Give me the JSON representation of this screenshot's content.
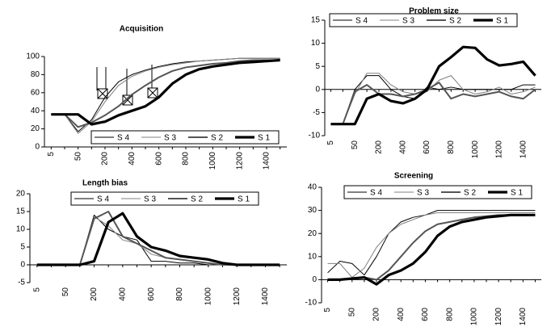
{
  "chart_data": [
    {
      "type": "line",
      "title": "Acquisition",
      "legend": "lower right",
      "categories": [
        "5",
        null,
        "50",
        null,
        "200",
        null,
        "400",
        null,
        "600",
        null,
        "800",
        null,
        "1000",
        null,
        "1200",
        null,
        "1400",
        null
      ],
      "ylim": [
        0,
        100
      ],
      "yticks": [
        0,
        20,
        40,
        60,
        80,
        100
      ],
      "series": [
        {
          "name": "S 4",
          "color": "#000000",
          "values": [
            36,
            36,
            17,
            30,
            55,
            72,
            80,
            85,
            89,
            92,
            94,
            95,
            96,
            97,
            98,
            98,
            98,
            98
          ]
        },
        {
          "name": "S 3",
          "color": "#808080",
          "values": [
            36,
            36,
            15,
            28,
            50,
            68,
            78,
            84,
            88,
            91,
            93,
            95,
            96,
            97,
            98,
            98,
            98,
            98
          ]
        },
        {
          "name": "S 2",
          "color": "#555555",
          "values": [
            36,
            36,
            22,
            27,
            35,
            45,
            58,
            68,
            77,
            84,
            88,
            90,
            92,
            93,
            95,
            96,
            96,
            96
          ]
        },
        {
          "name": "S 1",
          "color": "#000000",
          "values": [
            36,
            36,
            36,
            25,
            28,
            35,
            40,
            45,
            55,
            70,
            80,
            86,
            89,
            91,
            93,
            94,
            95,
            96
          ]
        }
      ]
    },
    {
      "type": "line",
      "title": "Problem size",
      "legend": "top",
      "categories": [
        "5",
        null,
        "50",
        null,
        "200",
        null,
        "400",
        null,
        "600",
        null,
        "800",
        null,
        "1000",
        null,
        "1200",
        null,
        "1400",
        null
      ],
      "ylim": [
        -10,
        15
      ],
      "yticks": [
        -10,
        -5,
        0,
        5,
        10,
        15
      ],
      "series": [
        {
          "name": "S 4",
          "color": "#000000",
          "values": [
            -7.5,
            -7.5,
            0,
            3,
            3,
            0,
            -1.5,
            -2,
            0.5,
            0,
            0.5,
            0,
            0,
            0,
            0,
            0,
            1,
            1
          ]
        },
        {
          "name": "S 3",
          "color": "#808080",
          "values": [
            -7.5,
            -7.5,
            -1,
            3.5,
            3.5,
            1,
            -0.5,
            -1,
            -0.5,
            2,
            3,
            0,
            -1,
            -0.5,
            0.5,
            -1,
            -0.5,
            0.5
          ]
        },
        {
          "name": "S 2",
          "color": "#555555",
          "values": [
            -7.5,
            -7.5,
            -0.5,
            1,
            -1,
            -1,
            -1.5,
            -1,
            0,
            1.5,
            -2,
            -1,
            -1.5,
            -1,
            -0.5,
            -1.5,
            -2,
            0
          ]
        },
        {
          "name": "S 1",
          "color": "#000000",
          "values": [
            -7.5,
            -7.5,
            -7.5,
            -2,
            -1,
            -2.5,
            -3,
            -2,
            0,
            5,
            7,
            9.2,
            9,
            6.5,
            5.2,
            5.5,
            6,
            3
          ]
        }
      ]
    },
    {
      "type": "line",
      "title": "Length bias",
      "legend": "top",
      "categories": [
        "5",
        null,
        "50",
        null,
        "200",
        null,
        "400",
        null,
        "600",
        null,
        "800",
        null,
        "1000",
        null,
        "1200",
        null,
        "1400",
        null
      ],
      "ylim": [
        -5,
        20
      ],
      "yticks": [
        -5,
        0,
        5,
        10,
        15,
        20
      ],
      "series": [
        {
          "name": "S 4",
          "color": "#000000",
          "values": [
            0,
            0,
            0,
            0,
            14,
            10,
            8,
            7,
            1,
            1,
            0.5,
            0.5,
            0,
            0,
            0,
            0,
            0,
            0
          ]
        },
        {
          "name": "S 3",
          "color": "#808080",
          "values": [
            0,
            0,
            0,
            0,
            13.5,
            11,
            7,
            6,
            3,
            2,
            1.5,
            1,
            0.5,
            0,
            0,
            0,
            0,
            0
          ]
        },
        {
          "name": "S 2",
          "color": "#555555",
          "values": [
            0,
            0,
            0,
            0,
            13,
            15,
            8,
            6,
            4,
            2,
            1.5,
            1,
            0.5,
            0,
            0,
            0,
            0,
            0
          ]
        },
        {
          "name": "S 1",
          "color": "#000000",
          "values": [
            0,
            0,
            0,
            0,
            1,
            12,
            14.5,
            8,
            5,
            4,
            2.5,
            2,
            1.5,
            0.5,
            0,
            0,
            0,
            0
          ]
        }
      ]
    },
    {
      "type": "line",
      "title": "Screening",
      "legend": "top",
      "categories": [
        "5",
        null,
        "50",
        null,
        "200",
        null,
        "400",
        null,
        "600",
        null,
        "800",
        null,
        "1000",
        null,
        "1200",
        null,
        "1400",
        null
      ],
      "ylim": [
        -10,
        40
      ],
      "yticks": [
        -10,
        0,
        10,
        20,
        30,
        40
      ],
      "series": [
        {
          "name": "S 4",
          "color": "#000000",
          "values": [
            3,
            8,
            7,
            2,
            10,
            20,
            25,
            27,
            28,
            30,
            30,
            30,
            30,
            30,
            30,
            30,
            30,
            30
          ]
        },
        {
          "name": "S 3",
          "color": "#808080",
          "values": [
            7,
            7,
            1,
            5,
            14,
            20,
            24,
            26,
            28,
            29,
            29,
            29,
            29,
            29,
            29,
            29,
            29,
            29
          ]
        },
        {
          "name": "S 2",
          "color": "#555555",
          "values": [
            0,
            0,
            0.5,
            1,
            0,
            4,
            10,
            16,
            21,
            24,
            25,
            26,
            27,
            27.5,
            28,
            28,
            28,
            28
          ]
        },
        {
          "name": "S 1",
          "color": "#000000",
          "values": [
            0,
            0,
            0.5,
            1,
            -2,
            2,
            4,
            7,
            12,
            19,
            23,
            25,
            26,
            27,
            27.5,
            28,
            28,
            28
          ]
        }
      ]
    }
  ]
}
